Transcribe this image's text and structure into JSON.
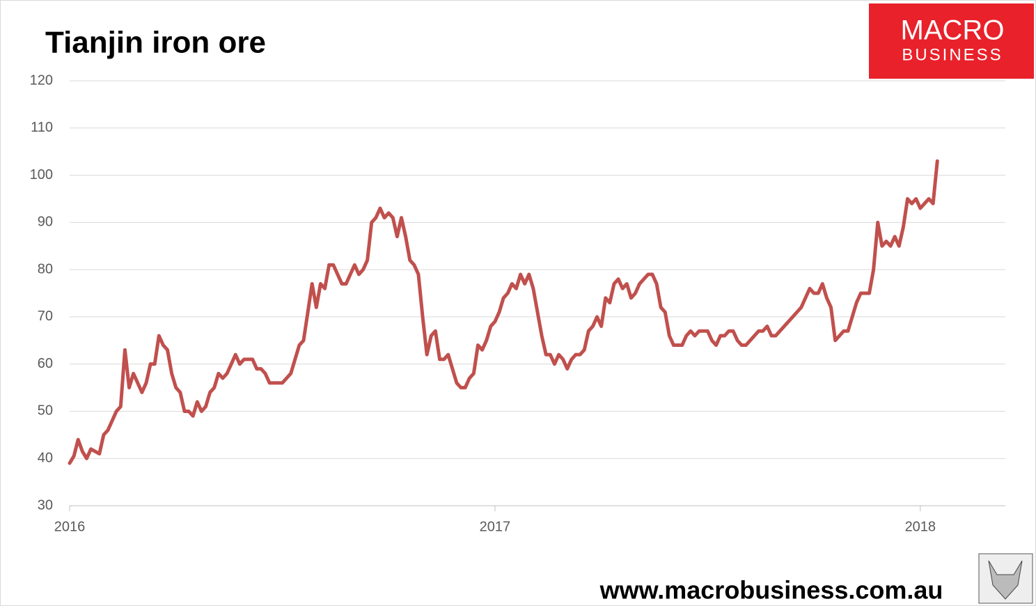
{
  "chart_data": {
    "type": "line",
    "title": "Tianjin iron ore",
    "logo_text": [
      "MACRO",
      "BUSINESS"
    ],
    "footer": "www.macrobusiness.com.au",
    "xlim": [
      2016,
      2018.2
    ],
    "xticks": [
      2016,
      2017,
      2018
    ],
    "ylim": [
      30,
      120
    ],
    "yticks": [
      30,
      40,
      50,
      60,
      70,
      80,
      90,
      100,
      110,
      120
    ],
    "grid": true,
    "series": [
      {
        "name": "Tianjin iron ore",
        "color": "#c0504d",
        "x": [
          2016,
          2016.01,
          2016.02,
          2016.03,
          2016.04,
          2016.05,
          2016.06,
          2016.07,
          2016.08,
          2016.09,
          2016.1,
          2016.11,
          2016.12,
          2016.13,
          2016.14,
          2016.15,
          2016.16,
          2016.17,
          2016.18,
          2016.19,
          2016.2,
          2016.21,
          2016.22,
          2016.23,
          2016.24,
          2016.25,
          2016.26,
          2016.27,
          2016.28,
          2016.29,
          2016.3,
          2016.31,
          2016.32,
          2016.33,
          2016.34,
          2016.35,
          2016.36,
          2016.37,
          2016.38,
          2016.39,
          2016.4,
          2016.41,
          2016.42,
          2016.43,
          2016.44,
          2016.45,
          2016.46,
          2016.47,
          2016.48,
          2016.49,
          2016.5,
          2016.51,
          2016.52,
          2016.53,
          2016.54,
          2016.55,
          2016.56,
          2016.57,
          2016.58,
          2016.59,
          2016.6,
          2016.61,
          2016.62,
          2016.63,
          2016.64,
          2016.65,
          2016.66,
          2016.67,
          2016.68,
          2016.69,
          2016.7,
          2016.71,
          2016.72,
          2016.73,
          2016.74,
          2016.75,
          2016.76,
          2016.77,
          2016.78,
          2016.79,
          2016.8,
          2016.81,
          2016.82,
          2016.83,
          2016.84,
          2016.85,
          2016.86,
          2016.87,
          2016.88,
          2016.89,
          2016.9,
          2016.91,
          2016.92,
          2016.93,
          2016.94,
          2016.95,
          2016.96,
          2016.97,
          2016.98,
          2016.99,
          2017,
          2017.01,
          2017.02,
          2017.03,
          2017.04,
          2017.05,
          2017.06,
          2017.07,
          2017.08,
          2017.09,
          2017.1,
          2017.11,
          2017.12,
          2017.13,
          2017.14,
          2017.15,
          2017.16,
          2017.17,
          2017.18,
          2017.19,
          2017.2,
          2017.21,
          2017.22,
          2017.23,
          2017.24,
          2017.25,
          2017.26,
          2017.27,
          2017.28,
          2017.29,
          2017.3,
          2017.31,
          2017.32,
          2017.33,
          2017.34,
          2017.35,
          2017.36,
          2017.37,
          2017.38,
          2017.39,
          2017.4,
          2017.41,
          2017.42,
          2017.43,
          2017.44,
          2017.45,
          2017.46,
          2017.47,
          2017.48,
          2017.49,
          2017.5,
          2017.51,
          2017.52,
          2017.53,
          2017.54,
          2017.55,
          2017.56,
          2017.57,
          2017.58,
          2017.59,
          2017.6,
          2017.61,
          2017.62,
          2017.63,
          2017.64,
          2017.65,
          2017.66,
          2017.67,
          2017.68,
          2017.69,
          2017.7,
          2017.71,
          2017.72,
          2017.73,
          2017.74,
          2017.75,
          2017.76,
          2017.77,
          2017.78,
          2017.79,
          2017.8,
          2017.81,
          2017.82,
          2017.83,
          2017.84,
          2017.85,
          2017.86,
          2017.87,
          2017.88,
          2017.89,
          2017.9,
          2017.91,
          2017.92,
          2017.93,
          2017.94,
          2017.95,
          2017.96,
          2017.97,
          2017.98,
          2017.99,
          2018,
          2018.01,
          2018.02,
          2018.03,
          2018.04
        ],
        "values": [
          39,
          40.5,
          44,
          41.5,
          40,
          42,
          41.5,
          41,
          45,
          46,
          48,
          50,
          51,
          63,
          55,
          58,
          56,
          54,
          56,
          60,
          60,
          66,
          64,
          63,
          58,
          55,
          54,
          50,
          50,
          49,
          52,
          50,
          51,
          54,
          55,
          58,
          57,
          58,
          60,
          62,
          60,
          61,
          61,
          61,
          59,
          59,
          58,
          56,
          56,
          56,
          56,
          57,
          58,
          61,
          64,
          65,
          71,
          77,
          72,
          77,
          76,
          81,
          81,
          79,
          77,
          77,
          79,
          81,
          79,
          80,
          82,
          90,
          91,
          93,
          91,
          92,
          91,
          87,
          91,
          87,
          82,
          81,
          79,
          70,
          62,
          66,
          67,
          61,
          61,
          62,
          59,
          56,
          55,
          55,
          57,
          58,
          64,
          63,
          65,
          68,
          69,
          71,
          74,
          75,
          77,
          76,
          79,
          77,
          79,
          76,
          71,
          66,
          62,
          62,
          60,
          62,
          61,
          59,
          61,
          62,
          62,
          63,
          67,
          68,
          70,
          68,
          74,
          73,
          77,
          78,
          76,
          77,
          74,
          75,
          77,
          78,
          79,
          79,
          77,
          72,
          71,
          66,
          64,
          64,
          64,
          66,
          67,
          66,
          67,
          67,
          67,
          65,
          64,
          66,
          66,
          67,
          67,
          65,
          64,
          64,
          65,
          66,
          67,
          67,
          68,
          66,
          66,
          67,
          68,
          69,
          70,
          71,
          72,
          74,
          76,
          75,
          75,
          77,
          74,
          72,
          65,
          66,
          67,
          67,
          70,
          73,
          75,
          75,
          75,
          80,
          90,
          85,
          86,
          85,
          87,
          85,
          89,
          95,
          94,
          95,
          93,
          94,
          95,
          94,
          103
        ]
      }
    ]
  }
}
